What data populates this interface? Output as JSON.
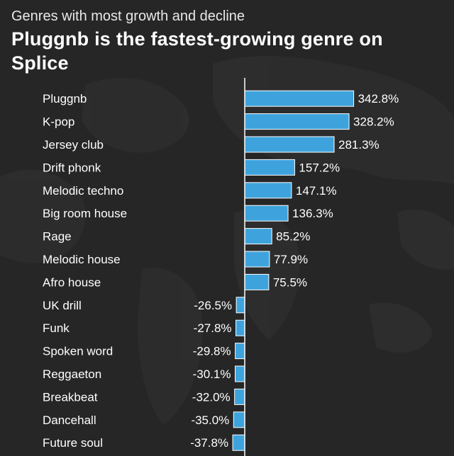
{
  "header": {
    "subtitle": "Genres with most growth and decline",
    "title": "Pluggnb is the fastest-growing genre on Splice"
  },
  "colors": {
    "background": "#262626",
    "bar": "#3ea3dc",
    "bar_edge": "#ffffff",
    "axis": "#ffffff",
    "text": "#ffffff"
  },
  "chart_data": {
    "type": "bar",
    "orientation": "horizontal",
    "title": "Pluggnb is the fastest-growing genre on Splice",
    "subtitle": "Genres with most growth and decline",
    "unit": "%",
    "categories": [
      "Pluggnb",
      "K-pop",
      "Jersey club",
      "Drift phonk",
      "Melodic techno",
      "Big room house",
      "Rage",
      "Melodic house",
      "Afro house",
      "UK drill",
      "Funk",
      "Spoken word",
      "Reggaeton",
      "Breakbeat",
      "Dancehall",
      "Future soul"
    ],
    "values": [
      342.8,
      328.2,
      281.3,
      157.2,
      147.1,
      136.3,
      85.2,
      77.9,
      75.5,
      -26.5,
      -27.8,
      -29.8,
      -30.1,
      -32.0,
      -35.0,
      -37.8
    ],
    "value_labels": [
      "342.8%",
      "328.2%",
      "281.3%",
      "157.2%",
      "147.1%",
      "136.3%",
      "85.2%",
      "77.9%",
      "75.5%",
      "-26.5%",
      "-27.8%",
      "-29.8%",
      "-30.1%",
      "-32.0%",
      "-35.0%",
      "-37.8%"
    ],
    "xlabel": "",
    "ylabel": "",
    "grid": false,
    "legend": "none"
  }
}
